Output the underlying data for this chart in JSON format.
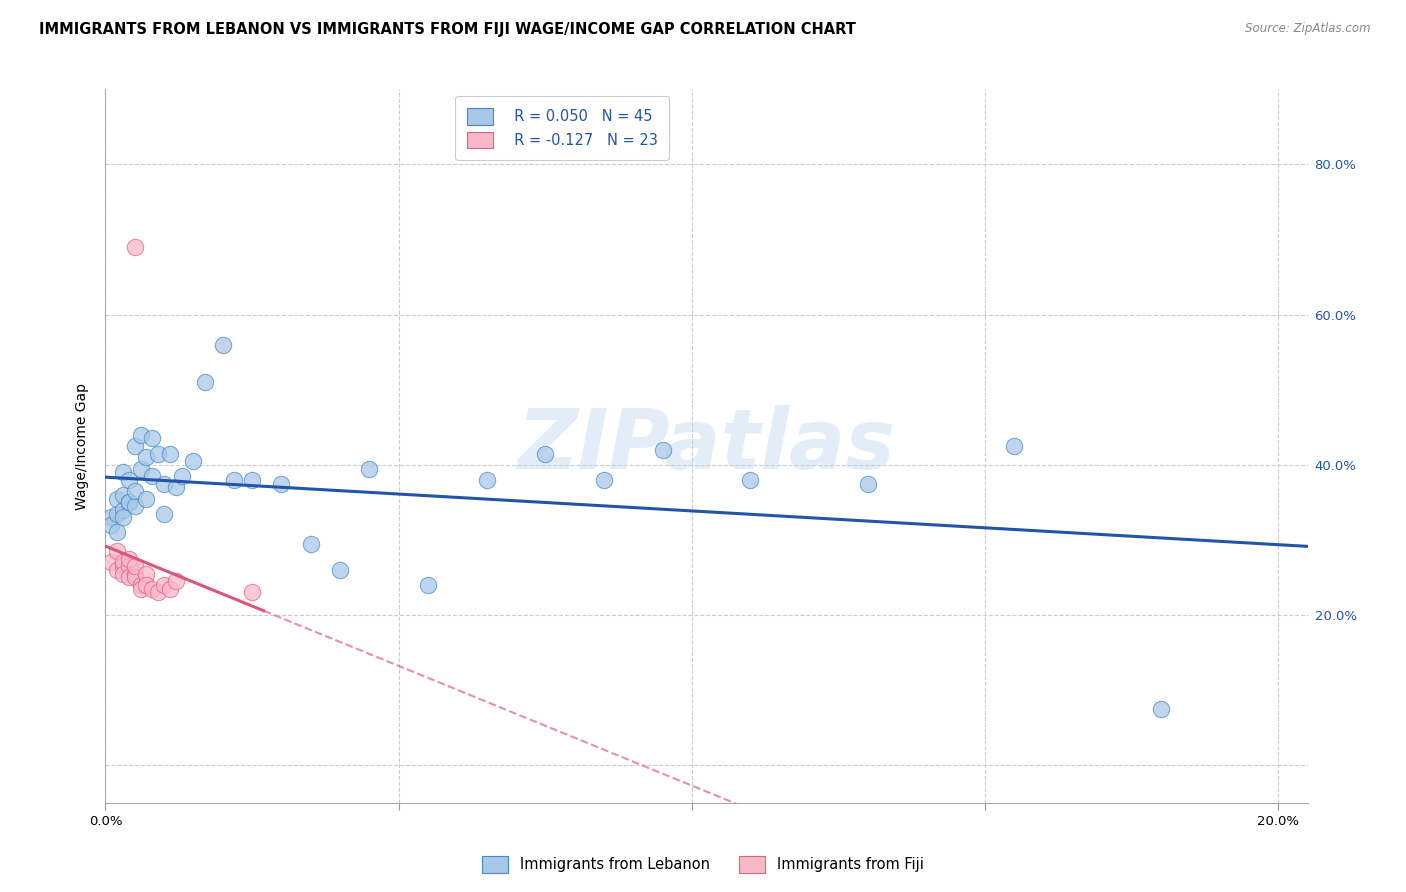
{
  "title": "IMMIGRANTS FROM LEBANON VS IMMIGRANTS FROM FIJI WAGE/INCOME GAP CORRELATION CHART",
  "source": "Source: ZipAtlas.com",
  "ylabel": "Wage/Income Gap",
  "xlim": [
    0.0,
    0.205
  ],
  "ylim": [
    -0.05,
    0.9
  ],
  "ytick_vals": [
    0.0,
    0.2,
    0.4,
    0.6,
    0.8
  ],
  "ytick_labels": [
    "",
    "20.0%",
    "40.0%",
    "60.0%",
    "80.0%"
  ],
  "xtick_vals": [
    0.0,
    0.05,
    0.1,
    0.15,
    0.2
  ],
  "xtick_labels": [
    "0.0%",
    "",
    "",
    "",
    "20.0%"
  ],
  "watermark": "ZIPatlas",
  "legend_r1": "R = 0.050",
  "legend_n1": "N = 45",
  "legend_r2": "R = -0.127",
  "legend_n2": "N = 23",
  "blue_dot_color": "#a8c8e8",
  "blue_dot_edge": "#4488cc",
  "pink_dot_color": "#f8b8c8",
  "pink_dot_edge": "#e06080",
  "blue_line_color": "#2255aa",
  "pink_line_color": "#dd5577",
  "grid_color": "#cccccc",
  "background_color": "#ffffff",
  "title_fontsize": 10.5,
  "axis_label_fontsize": 10,
  "tick_fontsize": 9.5,
  "legend_fontsize": 10.5,
  "lebanon_x": [
    0.001,
    0.001,
    0.002,
    0.002,
    0.002,
    0.003,
    0.003,
    0.003,
    0.003,
    0.004,
    0.004,
    0.004,
    0.005,
    0.005,
    0.005,
    0.006,
    0.006,
    0.007,
    0.007,
    0.008,
    0.008,
    0.009,
    0.01,
    0.01,
    0.011,
    0.012,
    0.013,
    0.015,
    0.017,
    0.02,
    0.022,
    0.025,
    0.03,
    0.035,
    0.04,
    0.045,
    0.055,
    0.065,
    0.075,
    0.085,
    0.095,
    0.11,
    0.13,
    0.155,
    0.18
  ],
  "lebanon_y": [
    0.33,
    0.32,
    0.335,
    0.31,
    0.355,
    0.34,
    0.33,
    0.36,
    0.39,
    0.35,
    0.38,
    0.35,
    0.345,
    0.425,
    0.365,
    0.44,
    0.395,
    0.41,
    0.355,
    0.435,
    0.385,
    0.415,
    0.375,
    0.335,
    0.415,
    0.37,
    0.385,
    0.405,
    0.51,
    0.56,
    0.38,
    0.38,
    0.375,
    0.295,
    0.26,
    0.395,
    0.24,
    0.38,
    0.415,
    0.38,
    0.42,
    0.38,
    0.375,
    0.425,
    0.075
  ],
  "fiji_x": [
    0.001,
    0.002,
    0.002,
    0.003,
    0.003,
    0.003,
    0.004,
    0.004,
    0.004,
    0.005,
    0.005,
    0.005,
    0.006,
    0.006,
    0.007,
    0.007,
    0.008,
    0.009,
    0.01,
    0.011,
    0.012,
    0.025,
    0.005
  ],
  "fiji_y": [
    0.27,
    0.285,
    0.26,
    0.265,
    0.27,
    0.255,
    0.265,
    0.275,
    0.25,
    0.255,
    0.25,
    0.265,
    0.24,
    0.235,
    0.255,
    0.24,
    0.235,
    0.23,
    0.24,
    0.235,
    0.245,
    0.23,
    0.69
  ]
}
